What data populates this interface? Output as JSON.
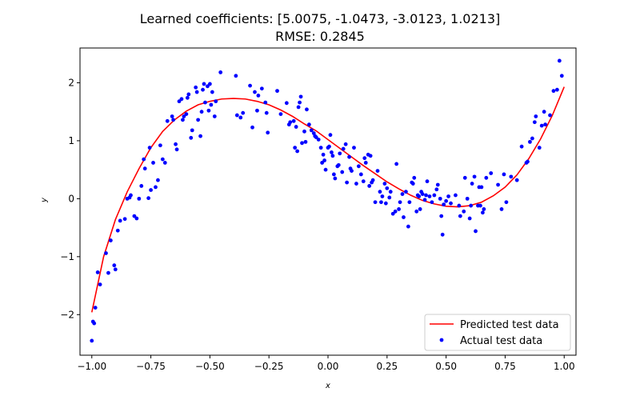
{
  "chart_data": {
    "type": "scatter",
    "title": "Learned coefficients: [5.0075, -1.0473, -3.0123, 1.0213]",
    "subtitle": "RMSE: 0.2845",
    "xlabel": "x",
    "ylabel": "y",
    "xlim": [
      -1.05,
      1.05
    ],
    "ylim": [
      -2.7,
      2.6
    ],
    "xticks": [
      -1.0,
      -0.75,
      -0.5,
      -0.25,
      0.0,
      0.25,
      0.5,
      0.75,
      1.0
    ],
    "xtick_labels": [
      "−1.00",
      "−0.75",
      "−0.50",
      "−0.25",
      "0.00",
      "0.25",
      "0.50",
      "0.75",
      "1.00"
    ],
    "yticks": [
      -2,
      -1,
      0,
      1,
      2
    ],
    "ytick_labels": [
      "−2",
      "−1",
      "0",
      "1",
      "2"
    ],
    "grid": false,
    "legend_position": "lower-right",
    "series": [
      {
        "name": "Predicted test data",
        "kind": "line",
        "color": "#ff0000",
        "coefficients": [
          1.0213,
          -3.0123,
          -1.0473,
          5.0075
        ],
        "x": [
          -1.0,
          -0.95,
          -0.9,
          -0.85,
          -0.8,
          -0.75,
          -0.7,
          -0.65,
          -0.6,
          -0.55,
          -0.5,
          -0.45,
          -0.4,
          -0.35,
          -0.3,
          -0.25,
          -0.2,
          -0.15,
          -0.1,
          -0.05,
          0.0,
          0.05,
          0.1,
          0.15,
          0.2,
          0.25,
          0.3,
          0.35,
          0.4,
          0.45,
          0.5,
          0.55,
          0.6,
          0.65,
          0.7,
          0.75,
          0.8,
          0.85,
          0.9,
          0.95,
          1.0
        ],
        "y": [
          -1.96,
          -1.0,
          -0.36,
          0.12,
          0.52,
          0.88,
          1.16,
          1.36,
          1.51,
          1.62,
          1.68,
          1.72,
          1.73,
          1.72,
          1.68,
          1.62,
          1.53,
          1.42,
          1.29,
          1.17,
          1.02,
          0.87,
          0.72,
          0.57,
          0.43,
          0.29,
          0.17,
          0.06,
          -0.03,
          -0.09,
          -0.13,
          -0.14,
          -0.12,
          -0.06,
          0.05,
          0.2,
          0.41,
          0.69,
          1.03,
          1.44,
          1.93
        ]
      },
      {
        "name": "Actual test data",
        "kind": "scatter",
        "color": "#0000ff",
        "points": [
          [
            -1.0,
            -2.45
          ],
          [
            -0.995,
            -2.12
          ],
          [
            -0.99,
            -2.15
          ],
          [
            -0.985,
            -1.88
          ],
          [
            -0.975,
            -1.27
          ],
          [
            -0.965,
            -1.48
          ],
          [
            -0.94,
            -0.94
          ],
          [
            -0.93,
            -1.28
          ],
          [
            -0.92,
            -0.72
          ],
          [
            -0.905,
            -1.15
          ],
          [
            -0.9,
            -1.22
          ],
          [
            -0.89,
            -0.55
          ],
          [
            -0.88,
            -0.38
          ],
          [
            -0.86,
            -0.35
          ],
          [
            -0.85,
            0.0
          ],
          [
            -0.84,
            0.02
          ],
          [
            -0.835,
            0.06
          ],
          [
            -0.82,
            -0.3
          ],
          [
            -0.81,
            -0.34
          ],
          [
            -0.8,
            0.0
          ],
          [
            -0.79,
            0.22
          ],
          [
            -0.78,
            0.68
          ],
          [
            -0.775,
            0.52
          ],
          [
            -0.76,
            0.01
          ],
          [
            -0.755,
            0.88
          ],
          [
            -0.75,
            0.15
          ],
          [
            -0.74,
            0.62
          ],
          [
            -0.73,
            0.2
          ],
          [
            -0.72,
            0.32
          ],
          [
            -0.71,
            0.92
          ],
          [
            -0.7,
            0.68
          ],
          [
            -0.69,
            0.62
          ],
          [
            -0.68,
            1.34
          ],
          [
            -0.66,
            1.42
          ],
          [
            -0.655,
            1.36
          ],
          [
            -0.645,
            0.94
          ],
          [
            -0.64,
            0.85
          ],
          [
            -0.63,
            1.68
          ],
          [
            -0.62,
            1.72
          ],
          [
            -0.615,
            1.36
          ],
          [
            -0.61,
            1.42
          ],
          [
            -0.6,
            1.46
          ],
          [
            -0.595,
            1.74
          ],
          [
            -0.59,
            1.8
          ],
          [
            -0.58,
            1.05
          ],
          [
            -0.575,
            1.18
          ],
          [
            -0.56,
            1.92
          ],
          [
            -0.555,
            1.84
          ],
          [
            -0.55,
            1.36
          ],
          [
            -0.54,
            1.08
          ],
          [
            -0.535,
            1.5
          ],
          [
            -0.53,
            1.88
          ],
          [
            -0.525,
            1.98
          ],
          [
            -0.52,
            1.66
          ],
          [
            -0.51,
            1.94
          ],
          [
            -0.505,
            1.52
          ],
          [
            -0.5,
            1.98
          ],
          [
            -0.495,
            1.62
          ],
          [
            -0.49,
            1.84
          ],
          [
            -0.48,
            1.42
          ],
          [
            -0.475,
            1.68
          ],
          [
            -0.455,
            2.18
          ],
          [
            -0.39,
            2.12
          ],
          [
            -0.385,
            1.44
          ],
          [
            -0.37,
            1.4
          ],
          [
            -0.36,
            1.48
          ],
          [
            -0.33,
            1.95
          ],
          [
            -0.32,
            1.23
          ],
          [
            -0.31,
            1.84
          ],
          [
            -0.3,
            1.52
          ],
          [
            -0.295,
            1.78
          ],
          [
            -0.28,
            1.9
          ],
          [
            -0.265,
            1.66
          ],
          [
            -0.26,
            1.48
          ],
          [
            -0.255,
            1.14
          ],
          [
            -0.215,
            1.86
          ],
          [
            -0.2,
            1.46
          ],
          [
            -0.175,
            1.65
          ],
          [
            -0.165,
            1.28
          ],
          [
            -0.16,
            1.32
          ],
          [
            -0.145,
            1.34
          ],
          [
            -0.14,
            0.88
          ],
          [
            -0.135,
            1.24
          ],
          [
            -0.13,
            0.82
          ],
          [
            -0.125,
            1.58
          ],
          [
            -0.12,
            1.66
          ],
          [
            -0.115,
            1.76
          ],
          [
            -0.11,
            0.96
          ],
          [
            -0.1,
            1.16
          ],
          [
            -0.095,
            0.98
          ],
          [
            -0.09,
            1.54
          ],
          [
            -0.08,
            1.28
          ],
          [
            -0.07,
            1.18
          ],
          [
            -0.06,
            1.13
          ],
          [
            -0.055,
            1.08
          ],
          [
            -0.05,
            1.06
          ],
          [
            -0.04,
            1.02
          ],
          [
            -0.03,
            0.88
          ],
          [
            -0.025,
            0.62
          ],
          [
            -0.02,
            0.76
          ],
          [
            -0.015,
            0.66
          ],
          [
            -0.01,
            0.5
          ],
          [
            0.0,
            0.88
          ],
          [
            0.005,
            0.9
          ],
          [
            0.01,
            1.1
          ],
          [
            0.015,
            0.8
          ],
          [
            0.02,
            0.74
          ],
          [
            0.025,
            0.42
          ],
          [
            0.03,
            0.35
          ],
          [
            0.04,
            0.56
          ],
          [
            0.045,
            0.58
          ],
          [
            0.05,
            0.78
          ],
          [
            0.06,
            0.46
          ],
          [
            0.065,
            0.86
          ],
          [
            0.075,
            0.94
          ],
          [
            0.08,
            0.28
          ],
          [
            0.09,
            0.72
          ],
          [
            0.095,
            0.52
          ],
          [
            0.1,
            0.48
          ],
          [
            0.11,
            0.88
          ],
          [
            0.12,
            0.26
          ],
          [
            0.13,
            0.56
          ],
          [
            0.14,
            0.42
          ],
          [
            0.15,
            0.3
          ],
          [
            0.155,
            0.7
          ],
          [
            0.16,
            0.62
          ],
          [
            0.17,
            0.76
          ],
          [
            0.175,
            0.22
          ],
          [
            0.18,
            0.74
          ],
          [
            0.185,
            0.28
          ],
          [
            0.19,
            0.32
          ],
          [
            0.2,
            -0.06
          ],
          [
            0.21,
            0.48
          ],
          [
            0.22,
            0.12
          ],
          [
            0.225,
            -0.06
          ],
          [
            0.23,
            0.04
          ],
          [
            0.24,
            0.26
          ],
          [
            0.245,
            -0.08
          ],
          [
            0.25,
            0.18
          ],
          [
            0.26,
            0.02
          ],
          [
            0.265,
            0.12
          ],
          [
            0.275,
            -0.26
          ],
          [
            0.285,
            -0.22
          ],
          [
            0.29,
            0.6
          ],
          [
            0.3,
            -0.18
          ],
          [
            0.305,
            -0.06
          ],
          [
            0.315,
            0.08
          ],
          [
            0.32,
            -0.32
          ],
          [
            0.33,
            0.12
          ],
          [
            0.34,
            -0.48
          ],
          [
            0.345,
            -0.06
          ],
          [
            0.355,
            0.28
          ],
          [
            0.36,
            0.26
          ],
          [
            0.365,
            0.36
          ],
          [
            0.375,
            -0.22
          ],
          [
            0.38,
            0.06
          ],
          [
            0.385,
            0.04
          ],
          [
            0.39,
            -0.18
          ],
          [
            0.395,
            0.12
          ],
          [
            0.4,
            0.08
          ],
          [
            0.41,
            -0.02
          ],
          [
            0.415,
            0.06
          ],
          [
            0.42,
            0.3
          ],
          [
            0.43,
            0.04
          ],
          [
            0.44,
            -0.06
          ],
          [
            0.45,
            0.06
          ],
          [
            0.46,
            0.16
          ],
          [
            0.465,
            0.24
          ],
          [
            0.475,
            0.0
          ],
          [
            0.48,
            -0.3
          ],
          [
            0.485,
            -0.62
          ],
          [
            0.49,
            -0.1
          ],
          [
            0.5,
            -0.04
          ],
          [
            0.51,
            0.04
          ],
          [
            0.52,
            -0.08
          ],
          [
            0.54,
            0.06
          ],
          [
            0.555,
            -0.12
          ],
          [
            0.56,
            -0.3
          ],
          [
            0.575,
            -0.22
          ],
          [
            0.58,
            0.36
          ],
          [
            0.59,
            0.0
          ],
          [
            0.6,
            -0.34
          ],
          [
            0.605,
            -0.12
          ],
          [
            0.61,
            0.26
          ],
          [
            0.62,
            0.38
          ],
          [
            0.625,
            -0.56
          ],
          [
            0.635,
            -0.12
          ],
          [
            0.64,
            0.2
          ],
          [
            0.645,
            -0.12
          ],
          [
            0.65,
            0.2
          ],
          [
            0.655,
            -0.24
          ],
          [
            0.66,
            -0.18
          ],
          [
            0.67,
            0.36
          ],
          [
            0.69,
            0.44
          ],
          [
            0.72,
            0.24
          ],
          [
            0.735,
            -0.18
          ],
          [
            0.745,
            0.42
          ],
          [
            0.755,
            -0.06
          ],
          [
            0.775,
            0.38
          ],
          [
            0.8,
            0.32
          ],
          [
            0.82,
            0.9
          ],
          [
            0.84,
            0.62
          ],
          [
            0.845,
            0.64
          ],
          [
            0.855,
            0.98
          ],
          [
            0.865,
            1.04
          ],
          [
            0.875,
            1.32
          ],
          [
            0.88,
            1.42
          ],
          [
            0.895,
            0.88
          ],
          [
            0.905,
            1.26
          ],
          [
            0.915,
            1.5
          ],
          [
            0.92,
            1.28
          ],
          [
            0.94,
            1.44
          ],
          [
            0.955,
            1.86
          ],
          [
            0.97,
            1.88
          ],
          [
            0.98,
            2.38
          ],
          [
            0.99,
            2.12
          ]
        ]
      }
    ]
  }
}
